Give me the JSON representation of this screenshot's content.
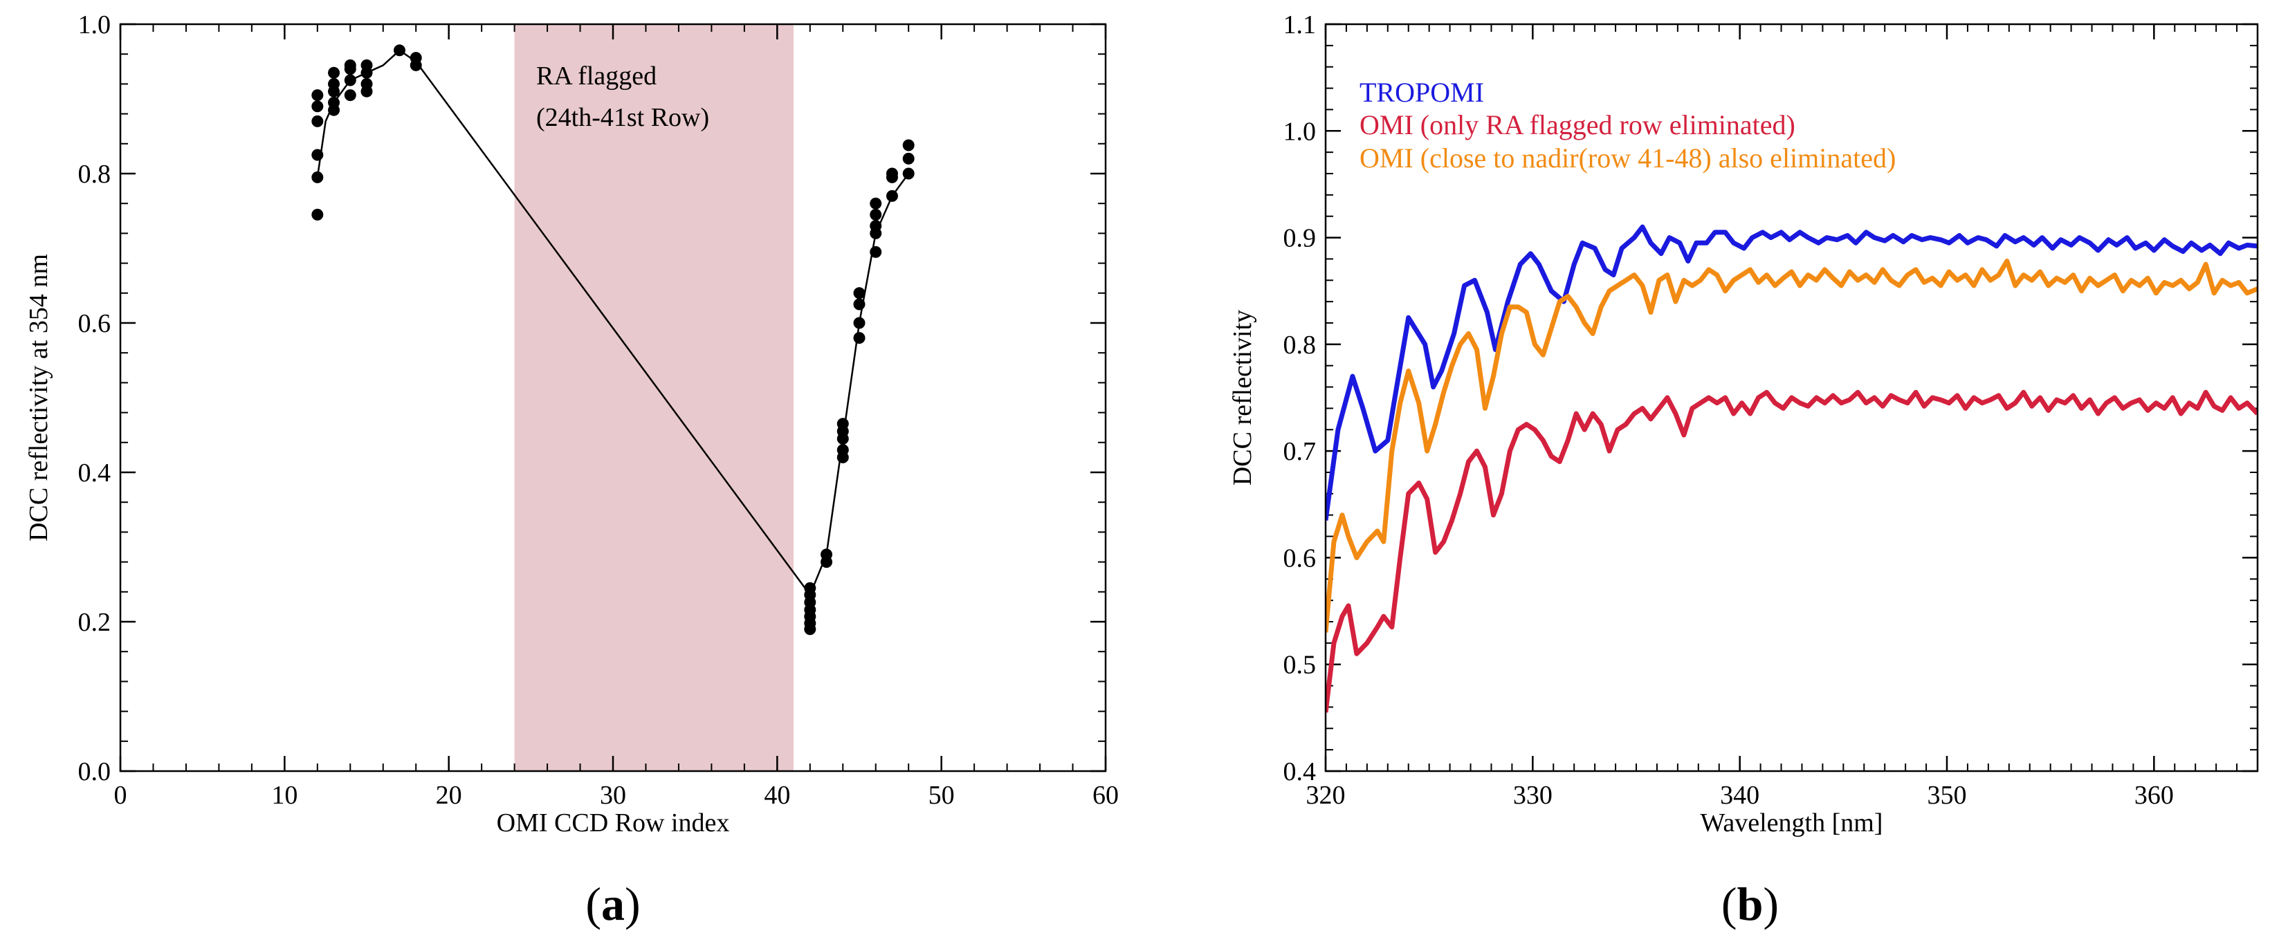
{
  "chart_data": [
    {
      "type": "scatter",
      "panel_label_parts": [
        "(",
        "a",
        ")"
      ],
      "title": "",
      "xlabel": "OMI CCD Row index",
      "ylabel": "DCC reflectivity at 354 nm",
      "xlim": [
        0,
        60
      ],
      "ylim": [
        0.0,
        1.0
      ],
      "xticks": [
        0,
        10,
        20,
        30,
        40,
        50,
        60
      ],
      "xtick_labels": [
        "0",
        "10",
        "20",
        "30",
        "40",
        "50",
        "60"
      ],
      "yticks": [
        0.0,
        0.2,
        0.4,
        0.6,
        0.8,
        1.0
      ],
      "ytick_labels": [
        "0.0",
        "0.2",
        "0.4",
        "0.6",
        "0.8",
        "1.0"
      ],
      "shaded_region": {
        "x_start": 24,
        "x_end": 41,
        "color": "#e8c9cd"
      },
      "annotation_lines": [
        "RA flagged",
        "(24th-41st Row)"
      ],
      "points": [
        [
          12,
          0.745
        ],
        [
          12,
          0.795
        ],
        [
          12,
          0.825
        ],
        [
          12,
          0.87
        ],
        [
          12,
          0.89
        ],
        [
          12,
          0.905
        ],
        [
          13,
          0.885
        ],
        [
          13,
          0.895
        ],
        [
          13,
          0.91
        ],
        [
          13,
          0.92
        ],
        [
          13,
          0.935
        ],
        [
          14,
          0.905
        ],
        [
          14,
          0.925
        ],
        [
          14,
          0.94
        ],
        [
          14,
          0.945
        ],
        [
          15,
          0.91
        ],
        [
          15,
          0.92
        ],
        [
          15,
          0.935
        ],
        [
          15,
          0.945
        ],
        [
          17,
          0.965
        ],
        [
          18,
          0.945
        ],
        [
          18,
          0.955
        ],
        [
          42,
          0.19
        ],
        [
          42,
          0.198
        ],
        [
          42,
          0.207
        ],
        [
          42,
          0.216
        ],
        [
          42,
          0.226
        ],
        [
          42,
          0.236
        ],
        [
          42,
          0.245
        ],
        [
          43,
          0.28
        ],
        [
          43,
          0.29
        ],
        [
          44,
          0.42
        ],
        [
          44,
          0.43
        ],
        [
          44,
          0.445
        ],
        [
          44,
          0.455
        ],
        [
          44,
          0.465
        ],
        [
          45,
          0.58
        ],
        [
          45,
          0.6
        ],
        [
          45,
          0.625
        ],
        [
          45,
          0.64
        ],
        [
          46,
          0.695
        ],
        [
          46,
          0.72
        ],
        [
          46,
          0.73
        ],
        [
          46,
          0.745
        ],
        [
          46,
          0.76
        ],
        [
          47,
          0.77
        ],
        [
          47,
          0.795
        ],
        [
          47,
          0.8
        ],
        [
          48,
          0.8
        ],
        [
          48,
          0.82
        ],
        [
          48,
          0.838
        ]
      ],
      "line": [
        [
          12,
          0.795
        ],
        [
          12.5,
          0.87
        ],
        [
          13,
          0.895
        ],
        [
          14,
          0.925
        ],
        [
          15,
          0.935
        ],
        [
          16,
          0.945
        ],
        [
          17,
          0.965
        ],
        [
          18,
          0.95
        ],
        [
          42,
          0.236
        ],
        [
          43,
          0.29
        ],
        [
          44,
          0.445
        ],
        [
          45,
          0.6
        ],
        [
          46,
          0.72
        ],
        [
          47,
          0.77
        ],
        [
          48,
          0.8
        ]
      ]
    },
    {
      "type": "line",
      "panel_label_parts": [
        "(",
        "b",
        ")"
      ],
      "title": "",
      "xlabel": "Wavelength [nm]",
      "ylabel": "DCC reflectivity",
      "xlim": [
        320,
        365
      ],
      "ylim": [
        0.4,
        1.1
      ],
      "xticks": [
        320,
        330,
        340,
        350,
        360
      ],
      "xtick_labels": [
        "320",
        "330",
        "340",
        "350",
        "360"
      ],
      "yticks": [
        0.4,
        0.5,
        0.6,
        0.7,
        0.8,
        0.9,
        1.0,
        1.1
      ],
      "ytick_labels": [
        "0.4",
        "0.5",
        "0.6",
        "0.7",
        "0.8",
        "0.9",
        "1.0",
        "1.1"
      ],
      "legend_position": "top-left",
      "series": [
        {
          "name": "TROPOMI",
          "color": "#1a1adf",
          "x": [
            320,
            320.6,
            321.3,
            321.8,
            322.4,
            323,
            323.3,
            324,
            324.8,
            325.2,
            325.6,
            326.2,
            326.7,
            327.2,
            327.8,
            328.2,
            328.8,
            329.4,
            329.9,
            330.3,
            330.9,
            331.5,
            332,
            332.4,
            333,
            333.5,
            333.9,
            334.3,
            334.9,
            335.3,
            335.7,
            336.2,
            336.6,
            337.1,
            337.5,
            337.9,
            338.4,
            338.8,
            339.3,
            339.7,
            340.2,
            340.6,
            341.1,
            341.5,
            342,
            342.4,
            342.9,
            343.3,
            343.8,
            344.2,
            344.7,
            345.2,
            345.6,
            346.1,
            346.5,
            347,
            347.4,
            347.9,
            348.3,
            348.8,
            349.2,
            349.7,
            350.1,
            350.6,
            351,
            351.5,
            351.9,
            352.4,
            352.8,
            353.3,
            353.7,
            354.2,
            354.6,
            355.1,
            355.5,
            356,
            356.4,
            356.9,
            357.3,
            357.8,
            358.2,
            358.7,
            359.1,
            359.6,
            360,
            360.5,
            360.9,
            361.4,
            361.8,
            362.3,
            362.7,
            363.2,
            363.6,
            364.1,
            364.5,
            365
          ],
          "y": [
            0.635,
            0.72,
            0.77,
            0.74,
            0.7,
            0.71,
            0.745,
            0.825,
            0.8,
            0.76,
            0.775,
            0.81,
            0.855,
            0.86,
            0.83,
            0.795,
            0.84,
            0.875,
            0.885,
            0.875,
            0.85,
            0.84,
            0.875,
            0.895,
            0.89,
            0.87,
            0.865,
            0.89,
            0.9,
            0.91,
            0.895,
            0.885,
            0.9,
            0.895,
            0.878,
            0.895,
            0.895,
            0.905,
            0.905,
            0.895,
            0.89,
            0.9,
            0.905,
            0.9,
            0.905,
            0.898,
            0.905,
            0.9,
            0.895,
            0.9,
            0.898,
            0.902,
            0.895,
            0.905,
            0.9,
            0.897,
            0.902,
            0.896,
            0.902,
            0.898,
            0.9,
            0.898,
            0.895,
            0.902,
            0.895,
            0.9,
            0.898,
            0.892,
            0.902,
            0.896,
            0.9,
            0.893,
            0.9,
            0.89,
            0.898,
            0.893,
            0.9,
            0.895,
            0.888,
            0.898,
            0.893,
            0.9,
            0.89,
            0.895,
            0.888,
            0.898,
            0.892,
            0.887,
            0.895,
            0.888,
            0.893,
            0.885,
            0.895,
            0.89,
            0.893,
            0.892
          ]
        },
        {
          "name": "OMI (only RA flagged row eliminated)",
          "color": "#d4213d",
          "x": [
            320,
            320.4,
            320.8,
            321.1,
            321.5,
            322,
            322.5,
            322.8,
            323.2,
            323.6,
            324,
            324.5,
            324.9,
            325.3,
            325.7,
            326.1,
            326.5,
            326.9,
            327.3,
            327.7,
            328.1,
            328.5,
            328.9,
            329.3,
            329.7,
            330.1,
            330.5,
            330.9,
            331.3,
            331.7,
            332.1,
            332.5,
            332.9,
            333.3,
            333.7,
            334.1,
            334.5,
            334.9,
            335.3,
            335.7,
            336.1,
            336.5,
            336.9,
            337.3,
            337.7,
            338.1,
            338.5,
            338.9,
            339.3,
            339.7,
            340.1,
            340.5,
            340.9,
            341.3,
            341.7,
            342.1,
            342.5,
            342.9,
            343.3,
            343.7,
            344.1,
            344.5,
            344.9,
            345.3,
            345.7,
            346.1,
            346.5,
            346.9,
            347.3,
            347.7,
            348.1,
            348.5,
            348.9,
            349.3,
            349.7,
            350.1,
            350.5,
            350.9,
            351.3,
            351.7,
            352.1,
            352.5,
            352.9,
            353.3,
            353.7,
            354.1,
            354.5,
            354.9,
            355.3,
            355.7,
            356.1,
            356.5,
            356.9,
            357.3,
            357.7,
            358.1,
            358.5,
            358.9,
            359.3,
            359.7,
            360.1,
            360.5,
            360.9,
            361.3,
            361.7,
            362.1,
            362.5,
            362.9,
            363.3,
            363.7,
            364.1,
            364.5,
            365
          ],
          "y": [
            0.455,
            0.52,
            0.545,
            0.555,
            0.51,
            0.52,
            0.535,
            0.545,
            0.535,
            0.6,
            0.66,
            0.67,
            0.655,
            0.605,
            0.615,
            0.635,
            0.66,
            0.69,
            0.7,
            0.685,
            0.64,
            0.66,
            0.7,
            0.72,
            0.725,
            0.72,
            0.71,
            0.695,
            0.69,
            0.71,
            0.735,
            0.72,
            0.735,
            0.725,
            0.7,
            0.72,
            0.725,
            0.735,
            0.74,
            0.73,
            0.74,
            0.75,
            0.735,
            0.715,
            0.74,
            0.745,
            0.75,
            0.745,
            0.75,
            0.735,
            0.745,
            0.735,
            0.75,
            0.755,
            0.745,
            0.74,
            0.75,
            0.745,
            0.742,
            0.75,
            0.745,
            0.752,
            0.745,
            0.748,
            0.755,
            0.745,
            0.75,
            0.742,
            0.752,
            0.748,
            0.745,
            0.755,
            0.742,
            0.75,
            0.748,
            0.745,
            0.752,
            0.74,
            0.75,
            0.745,
            0.748,
            0.752,
            0.74,
            0.745,
            0.755,
            0.742,
            0.75,
            0.738,
            0.748,
            0.745,
            0.752,
            0.74,
            0.748,
            0.735,
            0.745,
            0.75,
            0.74,
            0.745,
            0.748,
            0.738,
            0.745,
            0.74,
            0.75,
            0.735,
            0.745,
            0.74,
            0.755,
            0.742,
            0.738,
            0.75,
            0.74,
            0.745,
            0.735
          ]
        },
        {
          "name": "OMI (close to nadir(row 41-48) also eliminated)",
          "color": "#f28b13",
          "x": [
            320,
            320.4,
            320.8,
            321.1,
            321.5,
            322,
            322.5,
            322.8,
            323.2,
            323.6,
            324,
            324.5,
            324.9,
            325.3,
            325.7,
            326.1,
            326.5,
            326.9,
            327.3,
            327.7,
            328.1,
            328.5,
            328.9,
            329.3,
            329.7,
            330.1,
            330.5,
            330.9,
            331.3,
            331.7,
            332.1,
            332.5,
            332.9,
            333.3,
            333.7,
            334.1,
            334.5,
            334.9,
            335.3,
            335.7,
            336.1,
            336.5,
            336.9,
            337.3,
            337.7,
            338.1,
            338.5,
            338.9,
            339.3,
            339.7,
            340.1,
            340.5,
            340.9,
            341.3,
            341.7,
            342.1,
            342.5,
            342.9,
            343.3,
            343.7,
            344.1,
            344.5,
            344.9,
            345.3,
            345.7,
            346.1,
            346.5,
            346.9,
            347.3,
            347.7,
            348.1,
            348.5,
            348.9,
            349.3,
            349.7,
            350.1,
            350.5,
            350.9,
            351.3,
            351.7,
            352.1,
            352.5,
            352.9,
            353.3,
            353.7,
            354.1,
            354.5,
            354.9,
            355.3,
            355.7,
            356.1,
            356.5,
            356.9,
            357.3,
            357.7,
            358.1,
            358.5,
            358.9,
            359.3,
            359.7,
            360.1,
            360.5,
            360.9,
            361.3,
            361.7,
            362.1,
            362.5,
            362.9,
            363.3,
            363.7,
            364.1,
            364.5,
            365
          ],
          "y": [
            0.53,
            0.615,
            0.64,
            0.62,
            0.6,
            0.615,
            0.625,
            0.615,
            0.7,
            0.745,
            0.775,
            0.745,
            0.7,
            0.725,
            0.755,
            0.78,
            0.8,
            0.81,
            0.795,
            0.74,
            0.77,
            0.81,
            0.835,
            0.835,
            0.83,
            0.8,
            0.79,
            0.815,
            0.84,
            0.845,
            0.835,
            0.82,
            0.81,
            0.835,
            0.85,
            0.855,
            0.86,
            0.865,
            0.855,
            0.83,
            0.86,
            0.865,
            0.84,
            0.86,
            0.855,
            0.86,
            0.87,
            0.865,
            0.85,
            0.86,
            0.865,
            0.87,
            0.858,
            0.865,
            0.855,
            0.862,
            0.868,
            0.855,
            0.865,
            0.86,
            0.87,
            0.862,
            0.855,
            0.868,
            0.86,
            0.865,
            0.858,
            0.87,
            0.86,
            0.855,
            0.865,
            0.87,
            0.858,
            0.862,
            0.855,
            0.868,
            0.86,
            0.865,
            0.855,
            0.87,
            0.86,
            0.865,
            0.878,
            0.855,
            0.865,
            0.86,
            0.868,
            0.855,
            0.862,
            0.858,
            0.865,
            0.85,
            0.862,
            0.855,
            0.86,
            0.865,
            0.85,
            0.86,
            0.855,
            0.862,
            0.848,
            0.858,
            0.855,
            0.86,
            0.852,
            0.858,
            0.875,
            0.848,
            0.86,
            0.855,
            0.858,
            0.848,
            0.852
          ]
        }
      ]
    }
  ]
}
